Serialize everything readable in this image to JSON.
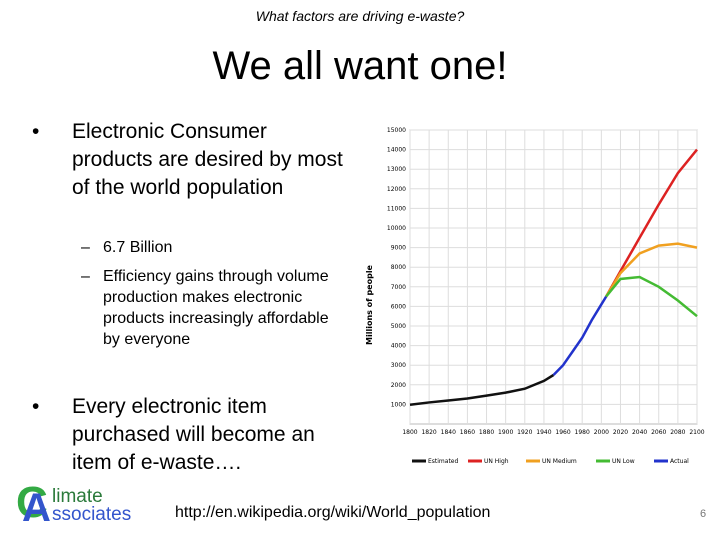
{
  "header": {
    "subtitle": "What factors are driving e-waste?",
    "title": "We all want one!"
  },
  "bullets": [
    {
      "text": "Electronic Consumer products are desired by most of the world population",
      "sub": [
        "6.7 Billion",
        "Efficiency gains through volume production makes electronic products increasingly affordable by everyone"
      ]
    },
    {
      "text": "Every electronic item purchased will become an item of e-waste….",
      "sub": []
    }
  ],
  "footer": {
    "logo": [
      "C",
      "limate",
      "A",
      "ssociates"
    ],
    "url": "http://en.wikipedia.org/wiki/World_population",
    "page": "6"
  },
  "chart_data": {
    "type": "line",
    "y_label": "Millions of people",
    "xlim": [
      1800,
      2100
    ],
    "xticks": [
      1800,
      1820,
      1840,
      1860,
      1880,
      1900,
      1920,
      1940,
      1960,
      1980,
      2000,
      2020,
      2040,
      2060,
      2080,
      2100
    ],
    "ylim": [
      0,
      15000
    ],
    "yticks": [
      1000,
      2000,
      3000,
      4000,
      5000,
      6000,
      7000,
      8000,
      9000,
      10000,
      11000,
      12000,
      13000,
      14000,
      15000
    ],
    "grid": true,
    "series": [
      {
        "name": "Estimated",
        "color": "#111111",
        "x": [
          1800,
          1820,
          1840,
          1860,
          1880,
          1900,
          1920,
          1940,
          1950
        ],
        "values": [
          980,
          1100,
          1200,
          1300,
          1450,
          1600,
          1800,
          2200,
          2500
        ]
      },
      {
        "name": "UN High",
        "color": "#dd2222",
        "x": [
          2005,
          2020,
          2040,
          2060,
          2080,
          2100
        ],
        "values": [
          6500,
          7800,
          9500,
          11200,
          12800,
          14000
        ]
      },
      {
        "name": "UN Medium",
        "color": "#f0a020",
        "x": [
          2005,
          2020,
          2040,
          2060,
          2080,
          2100
        ],
        "values": [
          6500,
          7700,
          8700,
          9100,
          9200,
          9000
        ]
      },
      {
        "name": "UN Low",
        "color": "#44bb33",
        "x": [
          2005,
          2020,
          2040,
          2060,
          2080,
          2100
        ],
        "values": [
          6500,
          7400,
          7500,
          7000,
          6300,
          5500
        ]
      },
      {
        "name": "Actual",
        "color": "#2233cc",
        "x": [
          1950,
          1960,
          1970,
          1980,
          1990,
          2000,
          2005
        ],
        "values": [
          2500,
          3000,
          3700,
          4400,
          5300,
          6100,
          6500
        ]
      }
    ]
  }
}
